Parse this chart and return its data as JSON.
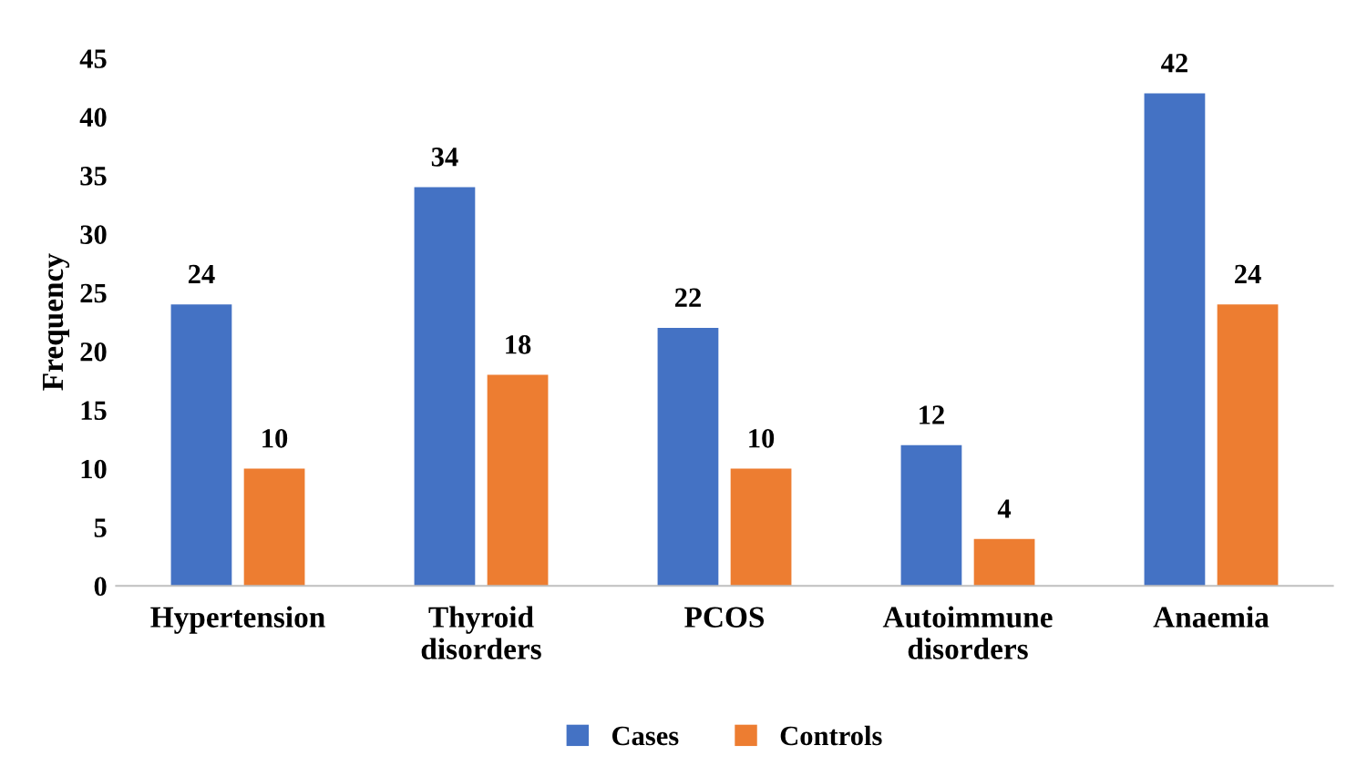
{
  "chart_data": {
    "type": "bar",
    "ylabel": "Frequency",
    "categories": [
      "Hypertension",
      "Thyroid\ndisorders",
      "PCOS",
      "Autoimmune\ndisorders",
      "Anaemia"
    ],
    "series": [
      {
        "name": "Cases",
        "color": "#4472c4",
        "values": [
          24,
          34,
          22,
          12,
          42
        ]
      },
      {
        "name": "Controls",
        "color": "#ed7d31",
        "values": [
          10,
          18,
          10,
          4,
          24
        ]
      }
    ],
    "ylim": [
      0,
      45
    ],
    "yticks": [
      0,
      5,
      10,
      15,
      20,
      25,
      30,
      35,
      40,
      45
    ],
    "data_labels": true,
    "legend": "bottom",
    "grid": false
  }
}
